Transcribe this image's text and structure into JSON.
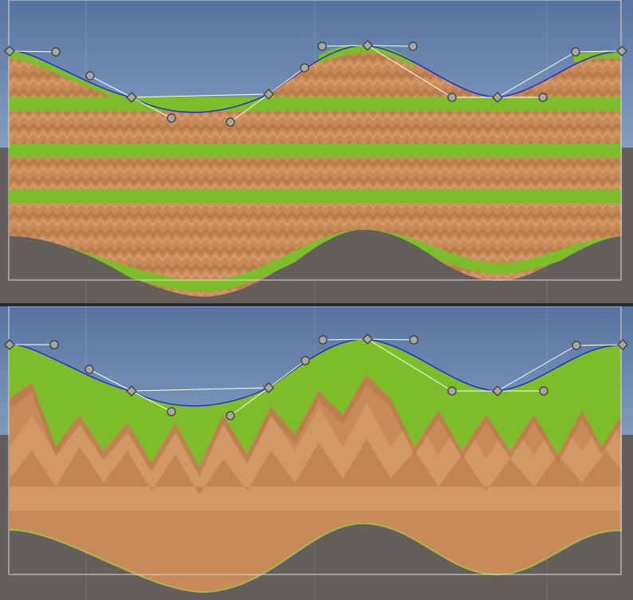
{
  "editor": {
    "panels": [
      {
        "name": "top-scene-view",
        "mode": "tiled-stripes"
      },
      {
        "name": "bottom-scene-view",
        "mode": "stretched-fill"
      }
    ],
    "control_point_count": 6,
    "tangent_handle_count": 10
  },
  "colors": {
    "sky_top": "#5674a0",
    "sky_bottom": "#b6cbe0",
    "horizon_band": "#d8e3ee",
    "ground": "#645f5b",
    "grass": "#7ebd2a",
    "dirt": "#c98a5a",
    "dirt_light": "#d69c6b",
    "dirt_dark": "#b77645",
    "spline": "#1f2fd4",
    "handle_line": "#ffffff",
    "selection_rect": "#d8d8d8",
    "point_fill": "#a7a7a7",
    "point_stroke": "#3d3d3d"
  },
  "icons": {
    "control_point": "diamond-handle-icon",
    "tangent_handle": "circle-handle-icon"
  }
}
